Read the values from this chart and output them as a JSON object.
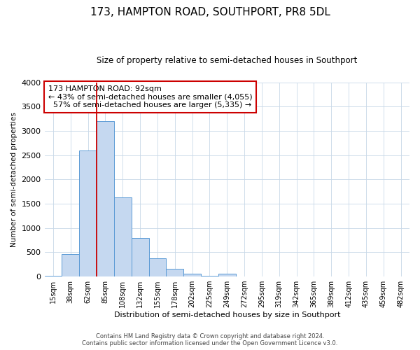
{
  "title_line1": "173, HAMPTON ROAD, SOUTHPORT, PR8 5DL",
  "title_line2": "Size of property relative to semi-detached houses in Southport",
  "xlabel": "Distribution of semi-detached houses by size in Southport",
  "ylabel": "Number of semi-detached properties",
  "bin_labels": [
    "15sqm",
    "38sqm",
    "62sqm",
    "85sqm",
    "108sqm",
    "132sqm",
    "155sqm",
    "178sqm",
    "202sqm",
    "225sqm",
    "249sqm",
    "272sqm",
    "295sqm",
    "319sqm",
    "342sqm",
    "365sqm",
    "389sqm",
    "412sqm",
    "435sqm",
    "459sqm",
    "482sqm"
  ],
  "bin_values": [
    20,
    460,
    2600,
    3200,
    1630,
    800,
    380,
    155,
    60,
    20,
    55,
    5,
    0,
    0,
    0,
    0,
    0,
    0,
    0,
    0,
    0
  ],
  "bar_color": "#c5d8f0",
  "bar_edge_color": "#5b9bd5",
  "property_line_color": "#cc0000",
  "annotation_line1": "173 HAMPTON ROAD: 92sqm",
  "annotation_line2": "← 43% of semi-detached houses are smaller (4,055)",
  "annotation_line3": "  57% of semi-detached houses are larger (5,335) →",
  "annotation_box_color": "#ffffff",
  "annotation_box_edge": "#cc0000",
  "ylim": [
    0,
    4000
  ],
  "yticks": [
    0,
    500,
    1000,
    1500,
    2000,
    2500,
    3000,
    3500,
    4000
  ],
  "footer_line1": "Contains HM Land Registry data © Crown copyright and database right 2024.",
  "footer_line2": "Contains public sector information licensed under the Open Government Licence v3.0.",
  "bg_color": "#ffffff",
  "grid_color": "#c8d8e8"
}
